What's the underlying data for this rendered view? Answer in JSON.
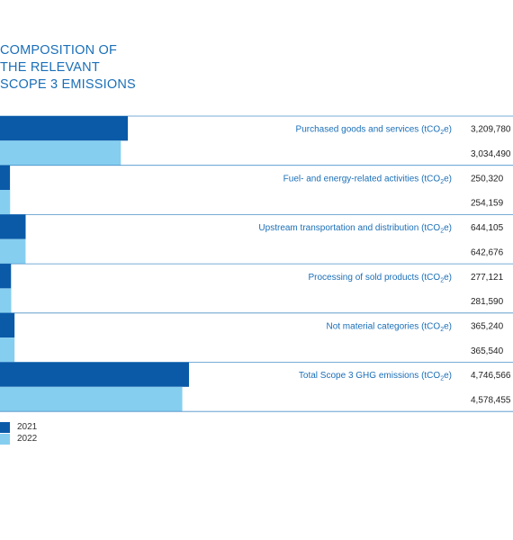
{
  "title_lines": [
    "COMPOSITION OF",
    "THE RELEVANT",
    "SCOPE 3 EMISSIONS"
  ],
  "colors": {
    "y2021": "#0a5aa8",
    "y2022": "#85cef0",
    "line": "#4a90c8",
    "title": "#1a6fb8"
  },
  "legend": [
    {
      "label": "2021",
      "color": "#0a5aa8"
    },
    {
      "label": "2022",
      "color": "#85cef0"
    }
  ],
  "chart_data": {
    "type": "bar",
    "orientation": "horizontal",
    "categories": [
      "Purchased goods and services (tCO2e)",
      "Fuel- and energy-related activities (tCO2e)",
      "Upstream transportation and distribution (tCO2e)",
      "Processing of sold products (tCO2e)",
      "Not material categories (tCO2e)",
      "Total Scope 3 GHG emissions (tCO2e)"
    ],
    "series": [
      {
        "name": "2021",
        "values": [
          3209780,
          250320,
          644105,
          277121,
          365240,
          4746566
        ],
        "labels": [
          "3,209,780",
          "250,320",
          "644,105",
          "277,121",
          "365,240",
          "4,746,566"
        ]
      },
      {
        "name": "2022",
        "values": [
          3034490,
          254159,
          642676,
          281590,
          365540,
          4578455
        ],
        "labels": [
          "3,034,490",
          "254,159",
          "642,676",
          "281,590",
          "365,540",
          "4,578,455"
        ]
      }
    ]
  }
}
